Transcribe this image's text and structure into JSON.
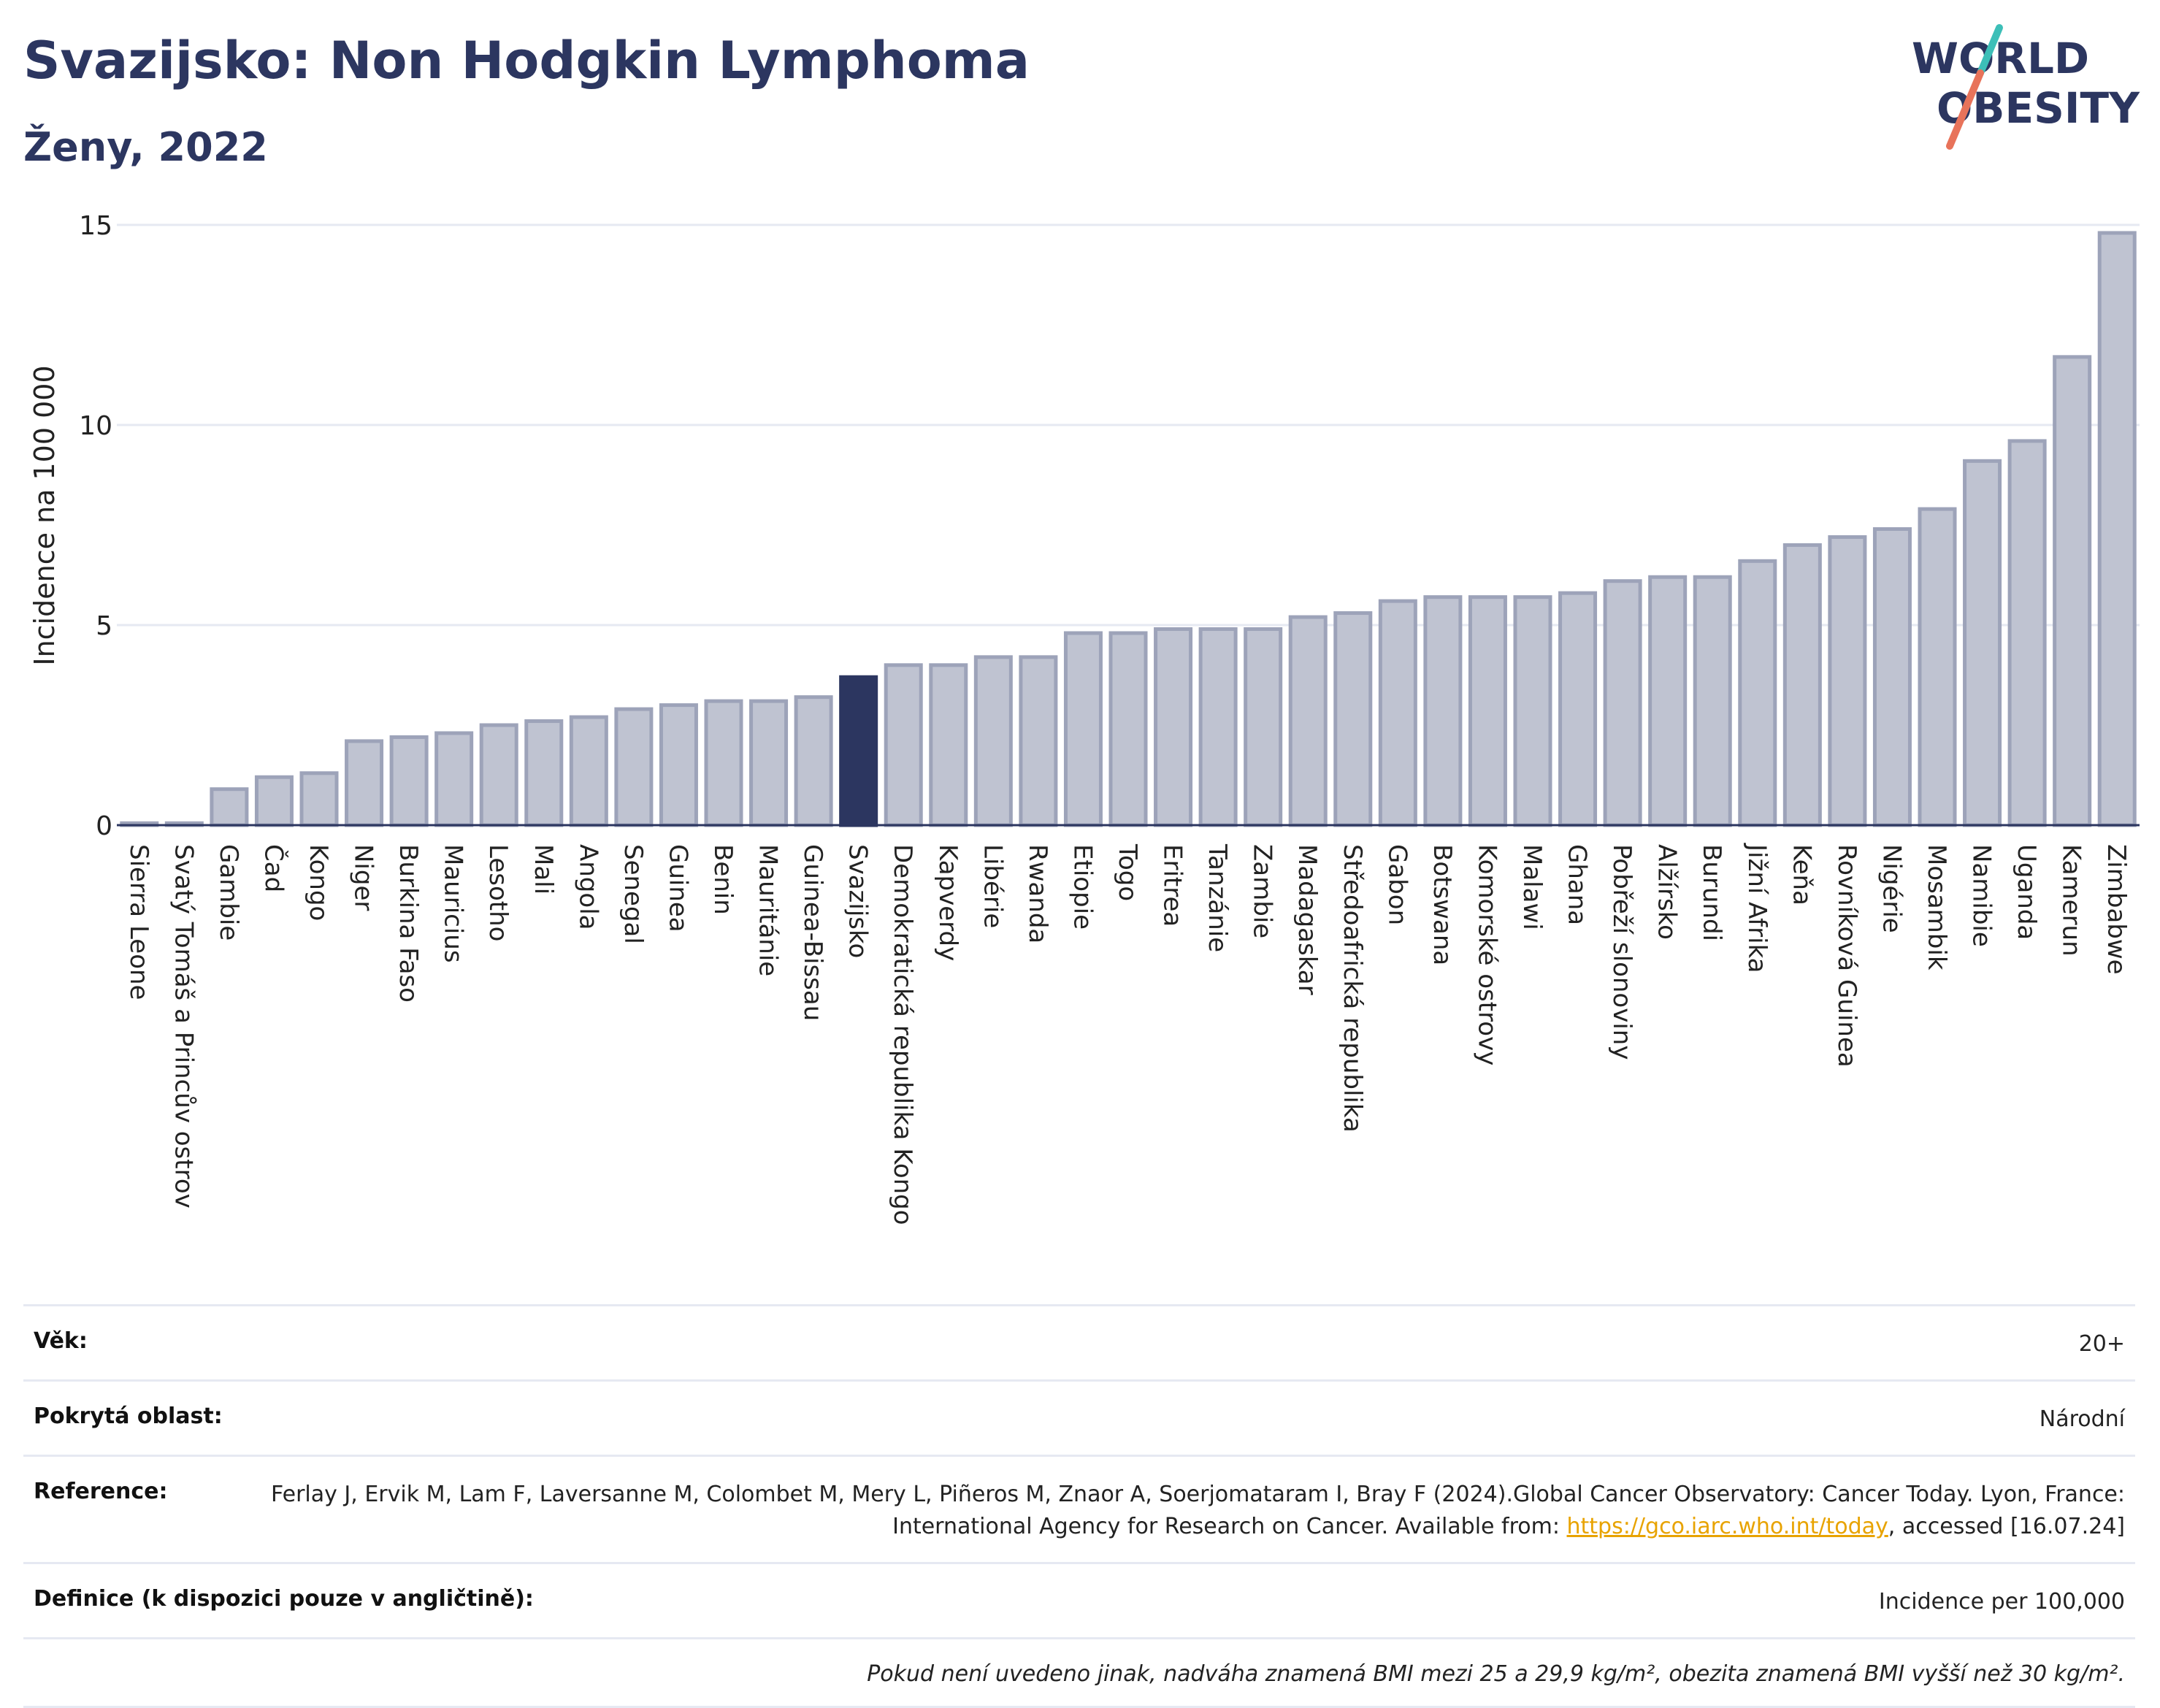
{
  "header": {
    "title": "Svazijsko: Non Hodgkin Lymphoma",
    "subtitle": "Ženy, 2022"
  },
  "logo": {
    "line1": "WORLD",
    "line2": "OBESITY"
  },
  "colors": {
    "bar": "#bfc3d1",
    "bar_stroke": "#9da3b9",
    "highlight": "#2c3660",
    "grid": "#e6e9f2",
    "logo_text": "#2c3660",
    "logo_teal": "#3dbfb8",
    "logo_coral": "#e8735a"
  },
  "chart_data": {
    "type": "bar",
    "ylabel": "Incidence na 100 000",
    "ylim": [
      0,
      15
    ],
    "yticks": [
      0,
      5,
      10,
      15
    ],
    "grid": true,
    "highlight": "Svazijsko",
    "categories": [
      "Sierra Leone",
      "Svatý Tomáš a Princův ostrov",
      "Gambie",
      "Čad",
      "Kongo",
      "Niger",
      "Burkina Faso",
      "Mauricius",
      "Lesotho",
      "Mali",
      "Angola",
      "Senegal",
      "Guinea",
      "Benin",
      "Mauritánie",
      "Guinea-Bissau",
      "Svazijsko",
      "Demokratická republika Kongo",
      "Kapverdy",
      "Libérie",
      "Rwanda",
      "Etiopie",
      "Togo",
      "Eritrea",
      "Tanzánie",
      "Zambie",
      "Madagaskar",
      "Středoafrická republika",
      "Gabon",
      "Botswana",
      "Komorské ostrovy",
      "Malawi",
      "Ghana",
      "Pobřeží slonoviny",
      "Alžírsko",
      "Burundi",
      "Jižní Afrika",
      "Keňa",
      "Rovníková Guinea",
      "Nigérie",
      "Mosambik",
      "Namibie",
      "Uganda",
      "Kamerun",
      "Zimbabwe"
    ],
    "values": [
      0.05,
      0.05,
      0.9,
      1.2,
      1.3,
      2.1,
      2.2,
      2.3,
      2.5,
      2.6,
      2.7,
      2.9,
      3.0,
      3.1,
      3.1,
      3.2,
      3.7,
      4.0,
      4.0,
      4.2,
      4.2,
      4.8,
      4.8,
      4.9,
      4.9,
      4.9,
      5.2,
      5.3,
      5.6,
      5.7,
      5.7,
      5.7,
      5.8,
      6.1,
      6.2,
      6.2,
      6.6,
      7.0,
      7.2,
      7.4,
      7.9,
      9.1,
      9.6,
      11.7,
      14.8
    ]
  },
  "info": {
    "age_label": "Věk:",
    "age_value": "20+",
    "area_label": "Pokrytá oblast:",
    "area_value": "Národní",
    "ref_label": "Reference:",
    "ref_text_1": "Ferlay J, Ervik M, Lam F, Laversanne M, Colombet M, Mery L, Piñeros M, Znaor A, Soerjomataram I, Bray F (2024).Global Cancer Observatory: Cancer Today. Lyon, France: International Agency for Research on Cancer. Available from: ",
    "ref_link": "https://gco.iarc.who.int/today",
    "ref_text_2": ", accessed [16.07.24]",
    "def_label": "Definice (k dispozici pouze v angličtině):",
    "def_value": "Incidence per 100,000",
    "note": "Pokud není uvedeno jinak, nadváha znamená BMI mezi 25 a 29,9 kg/m², obezita znamená BMI vyšší než 30 kg/m²."
  }
}
